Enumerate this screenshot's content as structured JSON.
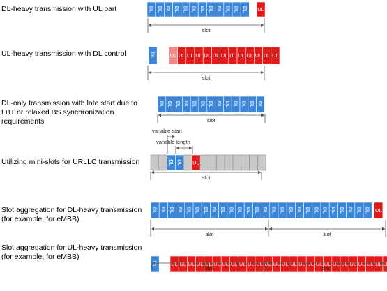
{
  "rows": [
    {
      "title_lines": [
        "DL-heavy transmission with UL part"
      ],
      "slot_labels": [
        "slot"
      ],
      "blocks": [
        {
          "type": "DL",
          "count": 12
        },
        {
          "type": "gap"
        },
        {
          "type": "UL"
        }
      ]
    },
    {
      "title_lines": [
        "UL-heavy transmission with DL control"
      ],
      "slot_labels": [
        "slot"
      ],
      "blocks": [
        {
          "type": "DL"
        },
        {
          "type": "gap"
        },
        {
          "type": "UL-light"
        },
        {
          "type": "UL",
          "count": 12
        }
      ]
    },
    {
      "title_lines": [
        "DL-only transmission with late start due to",
        "LBT or relaxed BS synchronization",
        "requirements"
      ],
      "slot_labels": [
        "slot"
      ],
      "blocks": [
        {
          "type": "DL",
          "count": 13
        }
      ]
    },
    {
      "title_lines": [
        "Utilizing mini-slots for URLLC transmission"
      ],
      "slot_labels": [
        "slot"
      ],
      "blocks": [
        {
          "type": "empty",
          "count": 2
        },
        {
          "type": "DL",
          "count": 2
        },
        {
          "type": "empty"
        },
        {
          "type": "UL"
        },
        {
          "type": "empty",
          "count": 8
        }
      ],
      "annotations": [
        "variable start",
        "variable length"
      ]
    },
    {
      "title_lines": [
        "Slot aggregation for DL-heavy transmission",
        "(for example, for eMBB)"
      ],
      "slot_labels": [
        "slot",
        "slot"
      ],
      "blocks": [
        {
          "type": "DL",
          "count": 26
        },
        {
          "type": "gap"
        },
        {
          "type": "UL"
        }
      ]
    },
    {
      "title_lines": [
        "Slot aggregation for UL-heavy transmission",
        "(for example, for eMBB)"
      ],
      "slot_labels": [
        "slot",
        "slot"
      ],
      "blocks": [
        {
          "type": "DL"
        },
        {
          "type": "gap"
        },
        {
          "type": "UL",
          "count": 26
        }
      ]
    }
  ],
  "colors": {
    "DL": "#3b86d8",
    "UL": "#e21a1a",
    "UL-light": "#f08a8a",
    "empty": "#c8c8c8",
    "cell_text": "#ffffff",
    "line": "#555555"
  }
}
